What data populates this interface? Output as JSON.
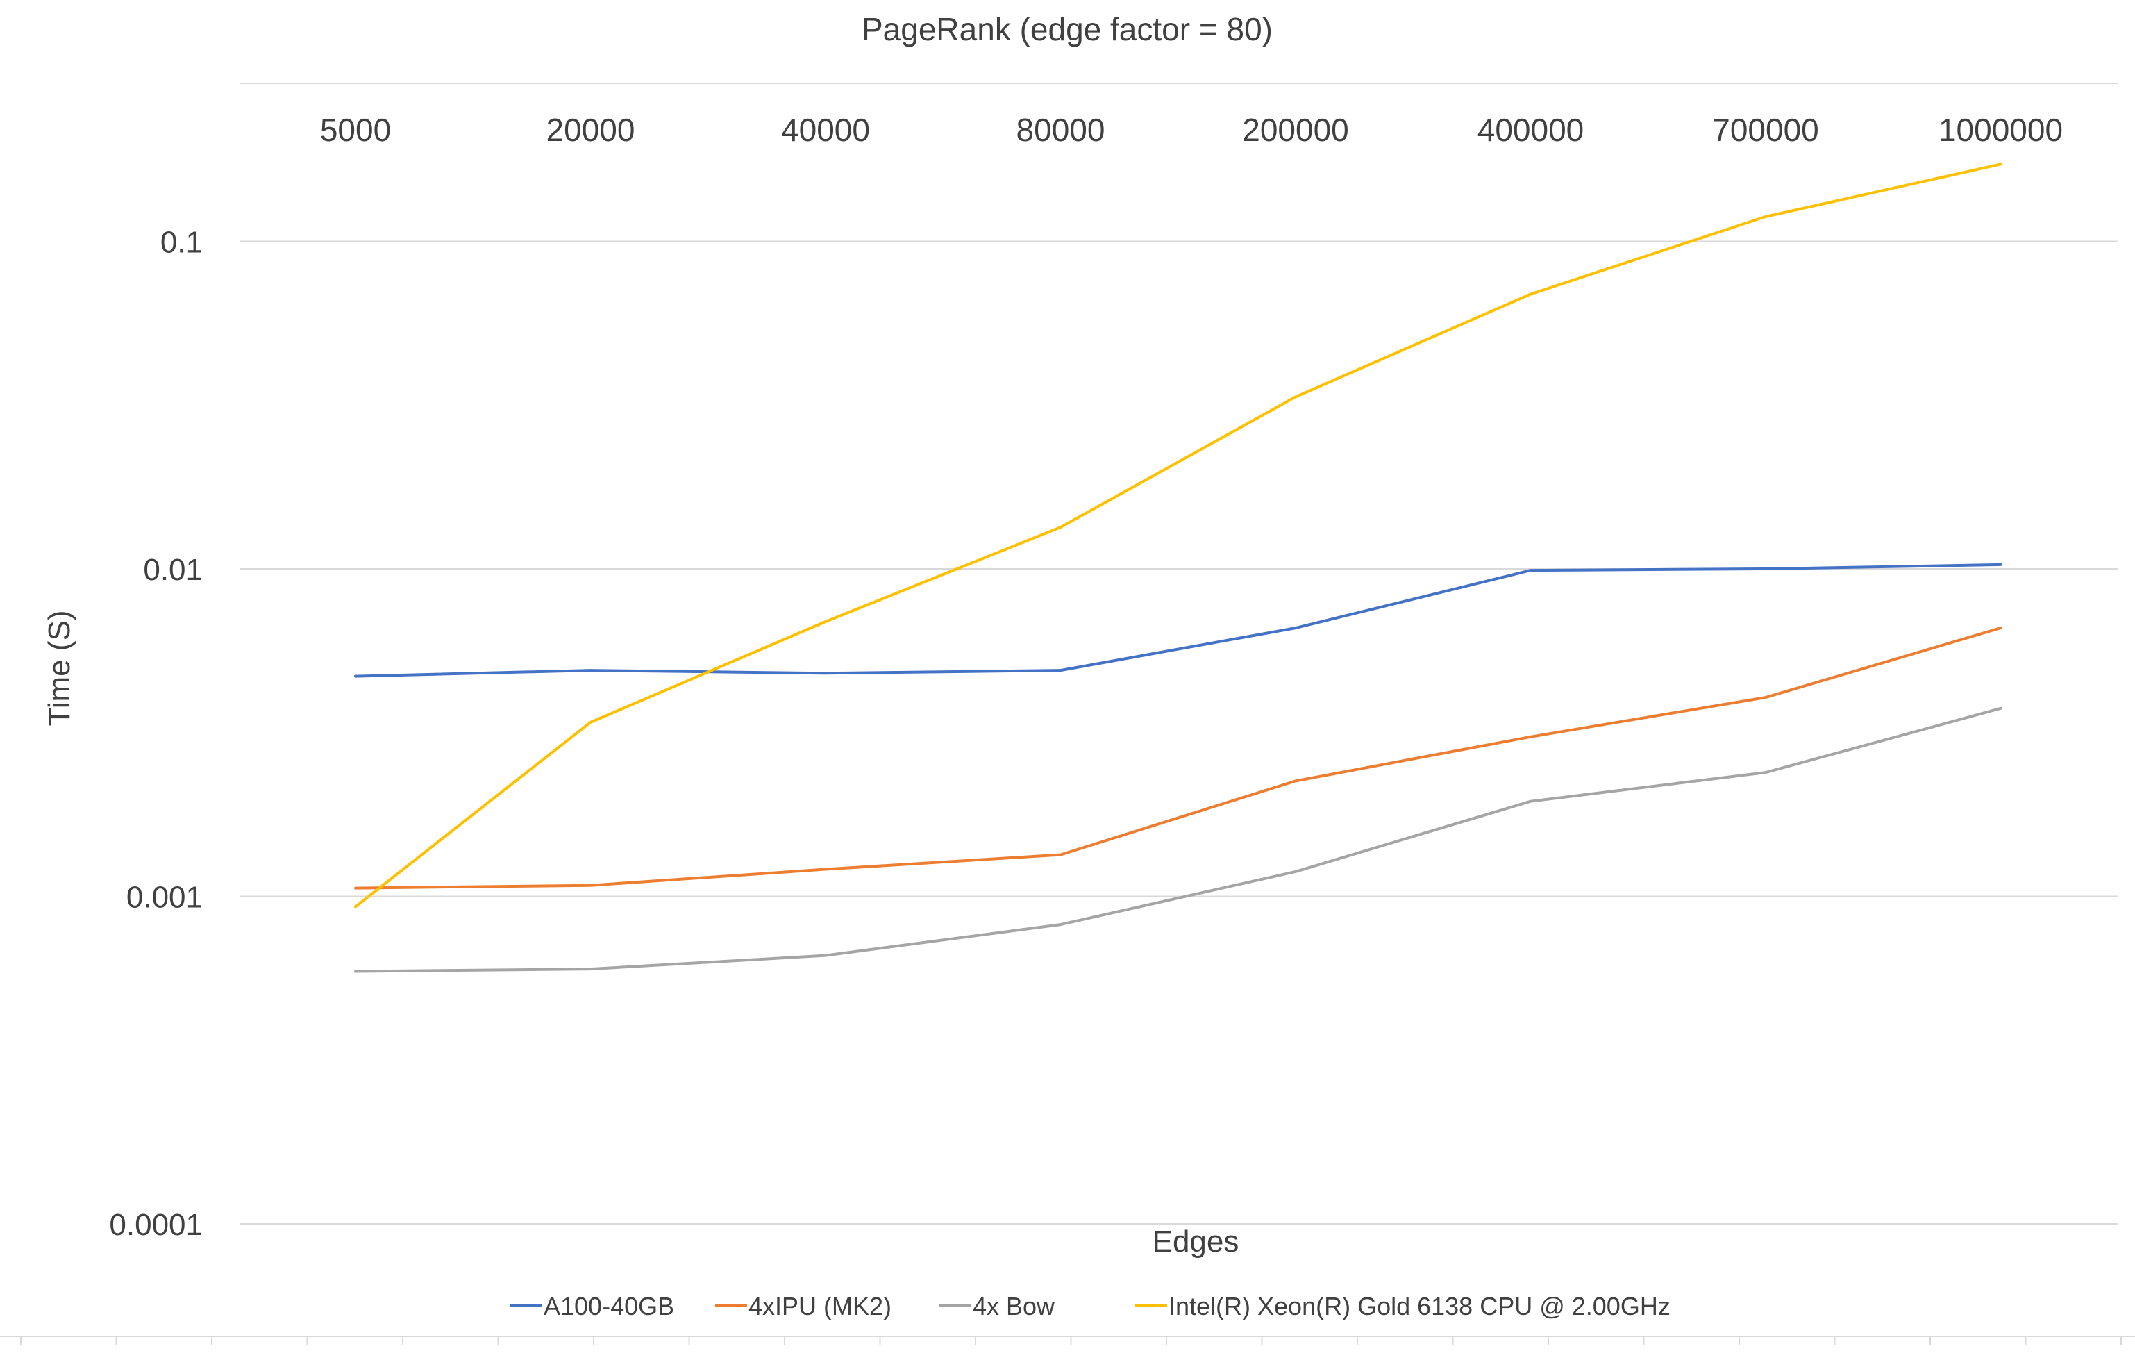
{
  "chart_data": {
    "type": "line",
    "title": "PageRank  (edge factor = 80)",
    "xlabel": "Edges",
    "ylabel": "Time (S)",
    "yscale": "log",
    "ylim": [
      0.0001,
      0.2
    ],
    "yticks": [
      "0.1",
      "0.01",
      "0.001",
      "0.0001"
    ],
    "ytick_values": [
      0.1,
      0.01,
      0.001,
      0.0001
    ],
    "categories": [
      "5000",
      "20000",
      "40000",
      "80000",
      "200000",
      "400000",
      "700000",
      "1000000"
    ],
    "x_axis_position": "top",
    "grid": true,
    "legend_position": "bottom",
    "series": [
      {
        "name": "A100-40GB",
        "color": "#4472C4",
        "values": [
          0.0047,
          0.0049,
          0.0048,
          0.0049,
          0.0066,
          0.0099,
          0.01,
          0.0103
        ]
      },
      {
        "name": "4xIPU (MK2)",
        "color": "#ED7D31",
        "values": [
          0.00106,
          0.00108,
          0.00121,
          0.00134,
          0.00225,
          0.00307,
          0.00405,
          0.0066
        ]
      },
      {
        "name": "4x Bow",
        "color": "#A5A5A5",
        "values": [
          0.00059,
          0.0006,
          0.00066,
          0.00082,
          0.00119,
          0.00195,
          0.00239,
          0.00375
        ]
      },
      {
        "name": "Intel(R) Xeon(R) Gold 6138 CPU @ 2.00GHz",
        "color": "#FFC000",
        "values": [
          0.00093,
          0.0034,
          0.0069,
          0.0134,
          0.0335,
          0.069,
          0.119,
          0.172
        ]
      }
    ]
  }
}
